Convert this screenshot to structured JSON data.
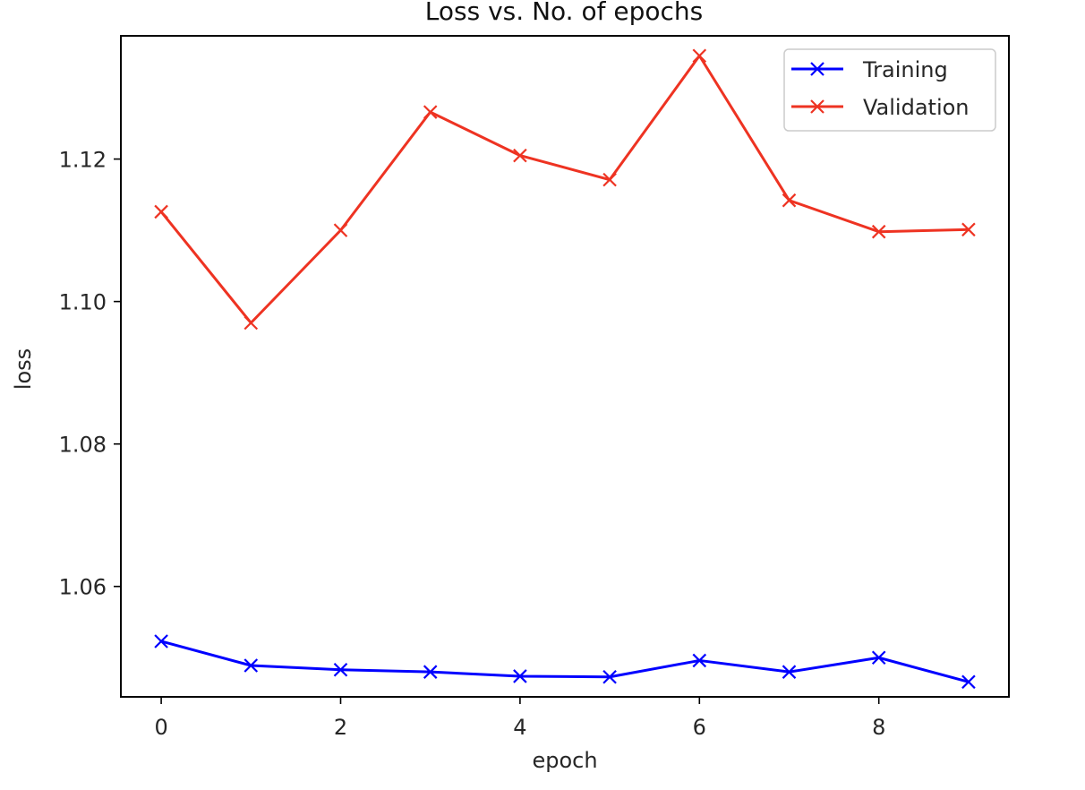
{
  "chart_data": {
    "type": "line",
    "title": "Loss vs. No. of epochs",
    "xlabel": "epoch",
    "ylabel": "loss",
    "xlim": [
      -0.45,
      9.45
    ],
    "ylim": [
      1.0445,
      1.1373
    ],
    "xticks": [
      0,
      2,
      4,
      6,
      8
    ],
    "xtick_labels": [
      "0",
      "2",
      "4",
      "6",
      "8"
    ],
    "yticks": [
      1.06,
      1.08,
      1.1,
      1.12
    ],
    "ytick_labels": [
      "1.06",
      "1.08",
      "1.10",
      "1.12"
    ],
    "grid": false,
    "legend_position": "top-right",
    "marker": "x",
    "x": [
      0,
      1,
      2,
      3,
      4,
      5,
      6,
      7,
      8,
      9
    ],
    "series": [
      {
        "name": "Training",
        "color": "#0000ff",
        "values": [
          1.0523,
          1.0489,
          1.0483,
          1.048,
          1.0474,
          1.0473,
          1.0496,
          1.048,
          1.05,
          1.0466
        ]
      },
      {
        "name": "Validation",
        "color": "#ee3322",
        "values": [
          1.1126,
          1.097,
          1.11,
          1.1266,
          1.1205,
          1.1171,
          1.1345,
          1.1142,
          1.1098,
          1.1101
        ]
      }
    ]
  }
}
